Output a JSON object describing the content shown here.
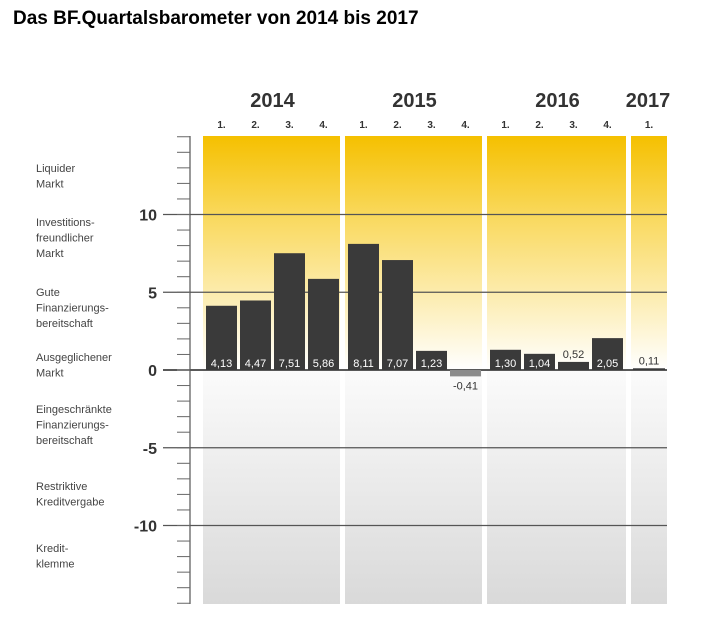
{
  "title": "Das BF.Quartalsbarometer von 2014 bis 2017",
  "chart_data": {
    "type": "bar",
    "title": "Das BF.Quartalsbarometer von 2014 bis 2017",
    "ylim": [
      -15,
      15
    ],
    "yticks": [
      10,
      5,
      0,
      -5,
      -10
    ],
    "grid": true,
    "years": [
      {
        "year": "2014",
        "quarters": [
          "1.",
          "2.",
          "3.",
          "4."
        ],
        "values": [
          4.13,
          4.47,
          7.51,
          5.86
        ],
        "labels": [
          "4,13",
          "4,47",
          "7,51",
          "5,86"
        ]
      },
      {
        "year": "2015",
        "quarters": [
          "1.",
          "2.",
          "3.",
          "4."
        ],
        "values": [
          8.11,
          7.07,
          1.23,
          -0.41
        ],
        "labels": [
          "8,11",
          "7,07",
          "1,23",
          "-0,41"
        ]
      },
      {
        "year": "2016",
        "quarters": [
          "1.",
          "2.",
          "3.",
          "4."
        ],
        "values": [
          1.3,
          1.04,
          0.52,
          2.05
        ],
        "labels": [
          "1,30",
          "1,04",
          "0,52",
          "2,05"
        ]
      },
      {
        "year": "2017",
        "quarters": [
          "1."
        ],
        "values": [
          0.11
        ],
        "labels": [
          "0,11"
        ]
      }
    ],
    "zones": [
      {
        "lines": [
          "Liquider",
          "Markt"
        ]
      },
      {
        "lines": [
          "Investitions-",
          "freundlicher",
          "Markt"
        ]
      },
      {
        "lines": [
          "Gute",
          "Finanzierungs-",
          "bereitschaft"
        ]
      },
      {
        "lines": [
          "Ausgeglichener",
          "Markt"
        ]
      },
      {
        "lines": [
          "Eingeschränkte",
          "Finanzierungs-",
          "bereitschaft"
        ]
      },
      {
        "lines": [
          "Restriktive",
          "Kreditvergabe"
        ]
      },
      {
        "lines": [
          "Kredit-",
          "klemme"
        ]
      }
    ],
    "colors": {
      "positive_bar": "#3a3a3a",
      "negative_bar": "#8c8c8c",
      "gradient_top": "#f5c000",
      "gradient_bottom": "#ffffff",
      "negative_zone_top": "#f7f7f7",
      "negative_zone_bottom": "#dcdcdc"
    }
  }
}
